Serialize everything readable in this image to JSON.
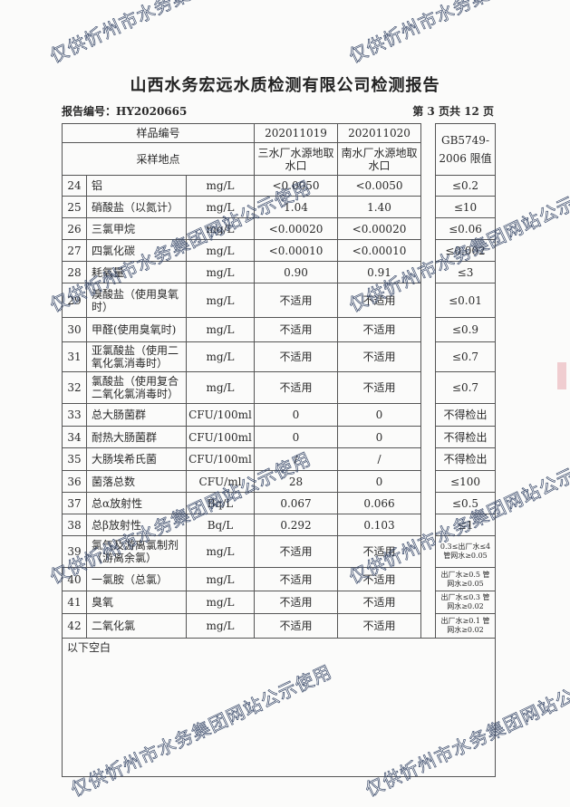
{
  "watermark": "仅供忻州市水务集团网站公示使用",
  "title": "山西水务宏远水质检测有限公司检测报告",
  "report_no": "报告编号：HY2020665",
  "page_info": "第 3 页共 12 页",
  "header": {
    "sample_no_label": "样品编号",
    "sample1": "202011019",
    "sample2": "202011020",
    "site_label": "采样地点",
    "site1": "三水厂水源地取水口",
    "site2": "南水厂水源地取水口",
    "limit_label": "GB5749-2006 限值"
  },
  "rows": [
    {
      "no": "24",
      "name": "铝",
      "unit": "mg/L",
      "v1": "<0.0050",
      "v2": "<0.0050",
      "limit": "≤0.2"
    },
    {
      "no": "25",
      "name": "硝酸盐（以氮计）",
      "unit": "mg/L",
      "v1": "1.04",
      "v2": "1.40",
      "limit": "≤10"
    },
    {
      "no": "26",
      "name": "三氯甲烷",
      "unit": "mg/L",
      "v1": "<0.00020",
      "v2": "<0.00020",
      "limit": "≤0.06"
    },
    {
      "no": "27",
      "name": "四氯化碳",
      "unit": "mg/L",
      "v1": "<0.00010",
      "v2": "<0.00010",
      "limit": "≤0.002"
    },
    {
      "no": "28",
      "name": "耗氧量",
      "unit": "mg/L",
      "v1": "0.90",
      "v2": "0.91",
      "limit": "≤3"
    },
    {
      "no": "29",
      "name": "溴酸盐（使用臭氧时）",
      "unit": "mg/L",
      "v1": "不适用",
      "v2": "不适用",
      "limit": "≤0.01"
    },
    {
      "no": "30",
      "name": "甲醛(使用臭氧时)",
      "unit": "mg/L",
      "v1": "不适用",
      "v2": "不适用",
      "limit": "≤0.9"
    },
    {
      "no": "31",
      "name": "亚氯酸盐（使用二氧化氯消毒时）",
      "unit": "mg/L",
      "v1": "不适用",
      "v2": "不适用",
      "limit": "≤0.7"
    },
    {
      "no": "32",
      "name": "氯酸盐（使用复合二氧化氯消毒时）",
      "unit": "mg/L",
      "v1": "不适用",
      "v2": "不适用",
      "limit": "≤0.7"
    },
    {
      "no": "33",
      "name": "总大肠菌群",
      "unit": "CFU/100ml",
      "v1": "0",
      "v2": "0",
      "limit": "不得检出"
    },
    {
      "no": "34",
      "name": "耐热大肠菌群",
      "unit": "CFU/100ml",
      "v1": "0",
      "v2": "0",
      "limit": "不得检出"
    },
    {
      "no": "35",
      "name": "大肠埃希氏菌",
      "unit": "CFU/100ml",
      "v1": "/",
      "v2": "/",
      "limit": "不得检出"
    },
    {
      "no": "36",
      "name": "菌落总数",
      "unit": "CFU/ml",
      "v1": "28",
      "v2": "0",
      "limit": "≤100"
    },
    {
      "no": "37",
      "name": "总α放射性",
      "unit": "Bq/L",
      "v1": "0.067",
      "v2": "0.066",
      "limit": "≤0.5"
    },
    {
      "no": "38",
      "name": "总β放射性",
      "unit": "Bq/L",
      "v1": "0.292",
      "v2": "0.103",
      "limit": "≤1"
    },
    {
      "no": "39",
      "name": "氯气及游离氯制剂（游离余氯）",
      "unit": "mg/L",
      "v1": "不适用",
      "v2": "不适用",
      "limit": "0.3≤出厂水≤4 管网水≥0.05"
    },
    {
      "no": "40",
      "name": "一氯胺（总氯）",
      "unit": "mg/L",
      "v1": "不适用",
      "v2": "不适用",
      "limit": "出厂水≥0.5 管网水≥0.05"
    },
    {
      "no": "41",
      "name": "臭氧",
      "unit": "mg/L",
      "v1": "不适用",
      "v2": "不适用",
      "limit": "出厂水≤0.3 管网水≥0.02"
    },
    {
      "no": "42",
      "name": "二氧化氯",
      "unit": "mg/L",
      "v1": "不适用",
      "v2": "不适用",
      "limit": "出厂水≥0.1 管网水≥0.02"
    }
  ],
  "footer_note": "以下空白"
}
